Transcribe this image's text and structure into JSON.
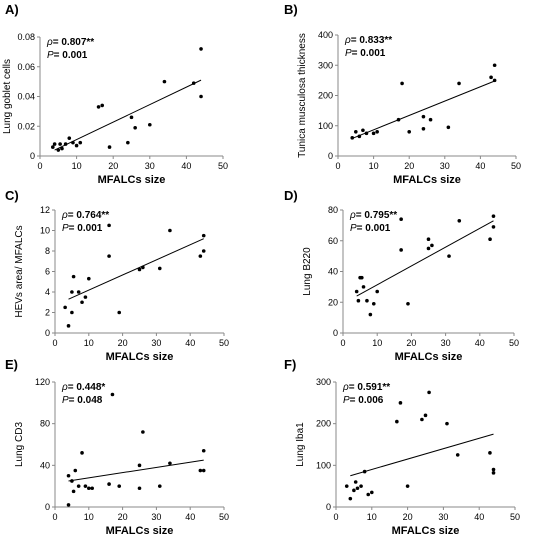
{
  "chart_data": [
    {
      "panel_label": "A)",
      "type": "scatter",
      "xlabel": "MFALCs size",
      "ylabel": "Lung goblet cells",
      "rho_text": "= 0.807",
      "stars": "**",
      "p_text": "= 0.001",
      "xlim": [
        0,
        50
      ],
      "ylim": [
        0,
        0.08
      ],
      "x_ticks": [
        0,
        10,
        20,
        30,
        40,
        50
      ],
      "y_ticks": [
        0,
        0.02,
        0.04,
        0.06,
        0.08
      ],
      "y_tick_labels": [
        "0",
        "0.02",
        "0.04",
        "0.06",
        "0.08"
      ],
      "points": [
        [
          3.5,
          0.006
        ],
        [
          4,
          0.008
        ],
        [
          5,
          0.004
        ],
        [
          5.5,
          0.008
        ],
        [
          6,
          0.005
        ],
        [
          7,
          0.008
        ],
        [
          8,
          0.012
        ],
        [
          9,
          0.009
        ],
        [
          10,
          0.007
        ],
        [
          11,
          0.009
        ],
        [
          16,
          0.033
        ],
        [
          17,
          0.034
        ],
        [
          19,
          0.006
        ],
        [
          24,
          0.009
        ],
        [
          25,
          0.026
        ],
        [
          26,
          0.019
        ],
        [
          30,
          0.021
        ],
        [
          34,
          0.05
        ],
        [
          42,
          0.049
        ],
        [
          44,
          0.072
        ],
        [
          44,
          0.04
        ]
      ],
      "trendline": [
        [
          4,
          0.004
        ],
        [
          44,
          0.051
        ]
      ]
    },
    {
      "panel_label": "B)",
      "type": "scatter",
      "xlabel": "MFALCs size",
      "ylabel": "Tunica musculosa thickness",
      "rho_text": "= 0.833",
      "stars": "**",
      "p_text": "= 0.001",
      "xlim": [
        0,
        50
      ],
      "ylim": [
        0,
        400
      ],
      "x_ticks": [
        0,
        10,
        20,
        30,
        40,
        50
      ],
      "y_ticks": [
        0,
        100,
        200,
        300,
        400
      ],
      "y_tick_labels": [
        "0",
        "100",
        "200",
        "300",
        "400"
      ],
      "points": [
        [
          4,
          60
        ],
        [
          5,
          80
        ],
        [
          6,
          65
        ],
        [
          7,
          85
        ],
        [
          8,
          75
        ],
        [
          10,
          75
        ],
        [
          11,
          80
        ],
        [
          17,
          120
        ],
        [
          18,
          240
        ],
        [
          20,
          80
        ],
        [
          24,
          130
        ],
        [
          24,
          90
        ],
        [
          26,
          120
        ],
        [
          31,
          95
        ],
        [
          34,
          240
        ],
        [
          43,
          260
        ],
        [
          44,
          300
        ],
        [
          44,
          250
        ]
      ],
      "trendline": [
        [
          4,
          58
        ],
        [
          44,
          248
        ]
      ]
    },
    {
      "panel_label": "C)",
      "type": "scatter",
      "xlabel": "MFALCs size",
      "ylabel": "HEVs area/ MFALCs",
      "rho_text": "= 0.764",
      "stars": "**",
      "p_text": "= 0.001",
      "xlim": [
        0,
        50
      ],
      "ylim": [
        0,
        12
      ],
      "x_ticks": [
        0,
        10,
        20,
        30,
        40,
        50
      ],
      "y_ticks": [
        0,
        2,
        4,
        6,
        8,
        10,
        12
      ],
      "y_tick_labels": [
        "0",
        "2",
        "4",
        "6",
        "8",
        "10",
        "12"
      ],
      "points": [
        [
          3,
          2.5
        ],
        [
          4,
          0.7
        ],
        [
          5,
          4.0
        ],
        [
          5.5,
          5.5
        ],
        [
          5,
          2.0
        ],
        [
          7,
          4.0
        ],
        [
          8,
          3.0
        ],
        [
          9,
          3.5
        ],
        [
          10,
          5.3
        ],
        [
          16,
          10.5
        ],
        [
          16,
          7.5
        ],
        [
          19,
          2.0
        ],
        [
          25,
          6.2
        ],
        [
          26,
          6.4
        ],
        [
          31,
          6.3
        ],
        [
          34,
          10.0
        ],
        [
          43,
          7.5
        ],
        [
          44,
          9.5
        ],
        [
          44,
          8.0
        ]
      ],
      "trendline": [
        [
          4,
          3.3
        ],
        [
          44,
          9.2
        ]
      ]
    },
    {
      "panel_label": "D)",
      "type": "scatter",
      "xlabel": "MFALCs size",
      "ylabel": "Lung B220",
      "rho_text": "= 0.795",
      "stars": "**",
      "p_text": "= 0.001",
      "xlim": [
        0,
        50
      ],
      "ylim": [
        0,
        80
      ],
      "x_ticks": [
        0,
        10,
        20,
        30,
        40,
        50
      ],
      "y_ticks": [
        0,
        20,
        40,
        60,
        80
      ],
      "y_tick_labels": [
        "0",
        "20",
        "40",
        "60",
        "80"
      ],
      "points": [
        [
          4,
          27
        ],
        [
          4.5,
          21
        ],
        [
          5,
          36
        ],
        [
          5.5,
          36
        ],
        [
          6,
          30
        ],
        [
          7,
          21
        ],
        [
          8,
          12
        ],
        [
          9,
          19
        ],
        [
          10,
          27
        ],
        [
          17,
          54
        ],
        [
          17,
          74
        ],
        [
          19,
          19
        ],
        [
          25,
          55
        ],
        [
          25,
          61
        ],
        [
          26,
          57
        ],
        [
          31,
          50
        ],
        [
          34,
          73
        ],
        [
          43,
          61
        ],
        [
          44,
          76
        ],
        [
          44,
          69
        ]
      ],
      "trendline": [
        [
          4,
          24
        ],
        [
          44,
          73
        ]
      ]
    },
    {
      "panel_label": "E)",
      "type": "scatter",
      "xlabel": "MFALCs size",
      "ylabel": "Lung CD3",
      "rho_text": "= 0.448",
      "stars": "*",
      "p_text": "= 0.048",
      "xlim": [
        0,
        50
      ],
      "ylim": [
        0,
        120
      ],
      "x_ticks": [
        0,
        10,
        20,
        30,
        40,
        50
      ],
      "y_ticks": [
        0,
        40,
        80,
        120
      ],
      "y_tick_labels": [
        "0",
        "40",
        "80",
        "120"
      ],
      "points": [
        [
          4,
          30
        ],
        [
          4,
          2
        ],
        [
          5,
          25
        ],
        [
          5.5,
          15
        ],
        [
          6,
          35
        ],
        [
          7,
          20
        ],
        [
          8,
          52
        ],
        [
          9,
          20
        ],
        [
          10,
          18
        ],
        [
          11,
          18
        ],
        [
          16,
          22
        ],
        [
          17,
          108
        ],
        [
          19,
          20
        ],
        [
          25,
          18
        ],
        [
          25,
          40
        ],
        [
          26,
          72
        ],
        [
          31,
          20
        ],
        [
          34,
          42
        ],
        [
          43,
          35
        ],
        [
          44,
          54
        ],
        [
          44,
          35
        ]
      ],
      "trendline": [
        [
          4,
          25
        ],
        [
          44,
          45
        ]
      ]
    },
    {
      "panel_label": "F)",
      "type": "scatter",
      "xlabel": "MFALCs size",
      "ylabel": "Lung Iba1",
      "rho_text": "= 0.591",
      "stars": "**",
      "p_text": "= 0.006",
      "xlim": [
        0,
        50
      ],
      "ylim": [
        0,
        300
      ],
      "x_ticks": [
        0,
        10,
        20,
        30,
        40,
        50
      ],
      "y_ticks": [
        0,
        100,
        200,
        300
      ],
      "y_tick_labels": [
        "0",
        "100",
        "200",
        "300"
      ],
      "points": [
        [
          3,
          50
        ],
        [
          4,
          20
        ],
        [
          5,
          40
        ],
        [
          5.5,
          60
        ],
        [
          6,
          45
        ],
        [
          7,
          50
        ],
        [
          8,
          85
        ],
        [
          9,
          30
        ],
        [
          10,
          35
        ],
        [
          17,
          205
        ],
        [
          18,
          250
        ],
        [
          20,
          50
        ],
        [
          24,
          210
        ],
        [
          25,
          220
        ],
        [
          26,
          275
        ],
        [
          31,
          200
        ],
        [
          34,
          125
        ],
        [
          43,
          130
        ],
        [
          44,
          90
        ],
        [
          44,
          82
        ]
      ],
      "trendline": [
        [
          4,
          75
        ],
        [
          44,
          175
        ]
      ]
    }
  ]
}
